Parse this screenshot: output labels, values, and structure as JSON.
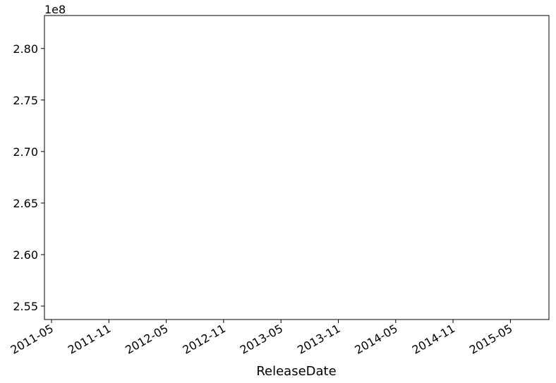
{
  "chart_data": {
    "type": "line",
    "title": "",
    "xlabel": "ReleaseDate",
    "ylabel": "",
    "y_offset_label": "1e8",
    "x_ticks": [
      "2011-05",
      "2011-11",
      "2012-05",
      "2012-11",
      "2013-05",
      "2013-11",
      "2014-05",
      "2014-11",
      "2015-05"
    ],
    "y_ticks": [
      "2.55",
      "2.60",
      "2.65",
      "2.70",
      "2.75",
      "2.80"
    ],
    "y_tick_values": [
      2.55,
      2.6,
      2.65,
      2.7,
      2.75,
      2.8
    ],
    "ylim": [
      2.537,
      2.832
    ],
    "grid": false,
    "series": []
  }
}
